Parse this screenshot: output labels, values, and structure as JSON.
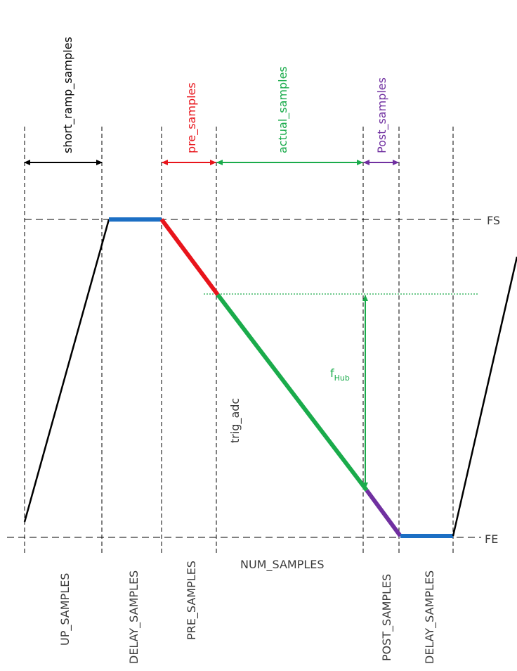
{
  "labels": {
    "short_ramp": "short_ramp_samples",
    "pre": "pre_samples",
    "actual": "actual_samples",
    "post": "Post_samples",
    "fs": "FS",
    "fe": "FE",
    "trig": "trig_adc",
    "fhub_main": "f",
    "fhub_sub": "Hub",
    "up_samples": "UP_SAMPLES",
    "delay_samples_1": "DELAY_SAMPLES",
    "pre_samples_cap": "PRE_SAMPLES",
    "num_samples": "NUM_SAMPLES",
    "post_samples_cap": "POST_SAMPLES",
    "delay_samples_2": "DELAY_SAMPLES"
  },
  "colors": {
    "black": "#000000",
    "red": "#e8141b",
    "green": "#1aab4b",
    "purple": "#7030a0",
    "blue": "#1c6fc4",
    "gray_text": "#3a3a3a"
  }
}
